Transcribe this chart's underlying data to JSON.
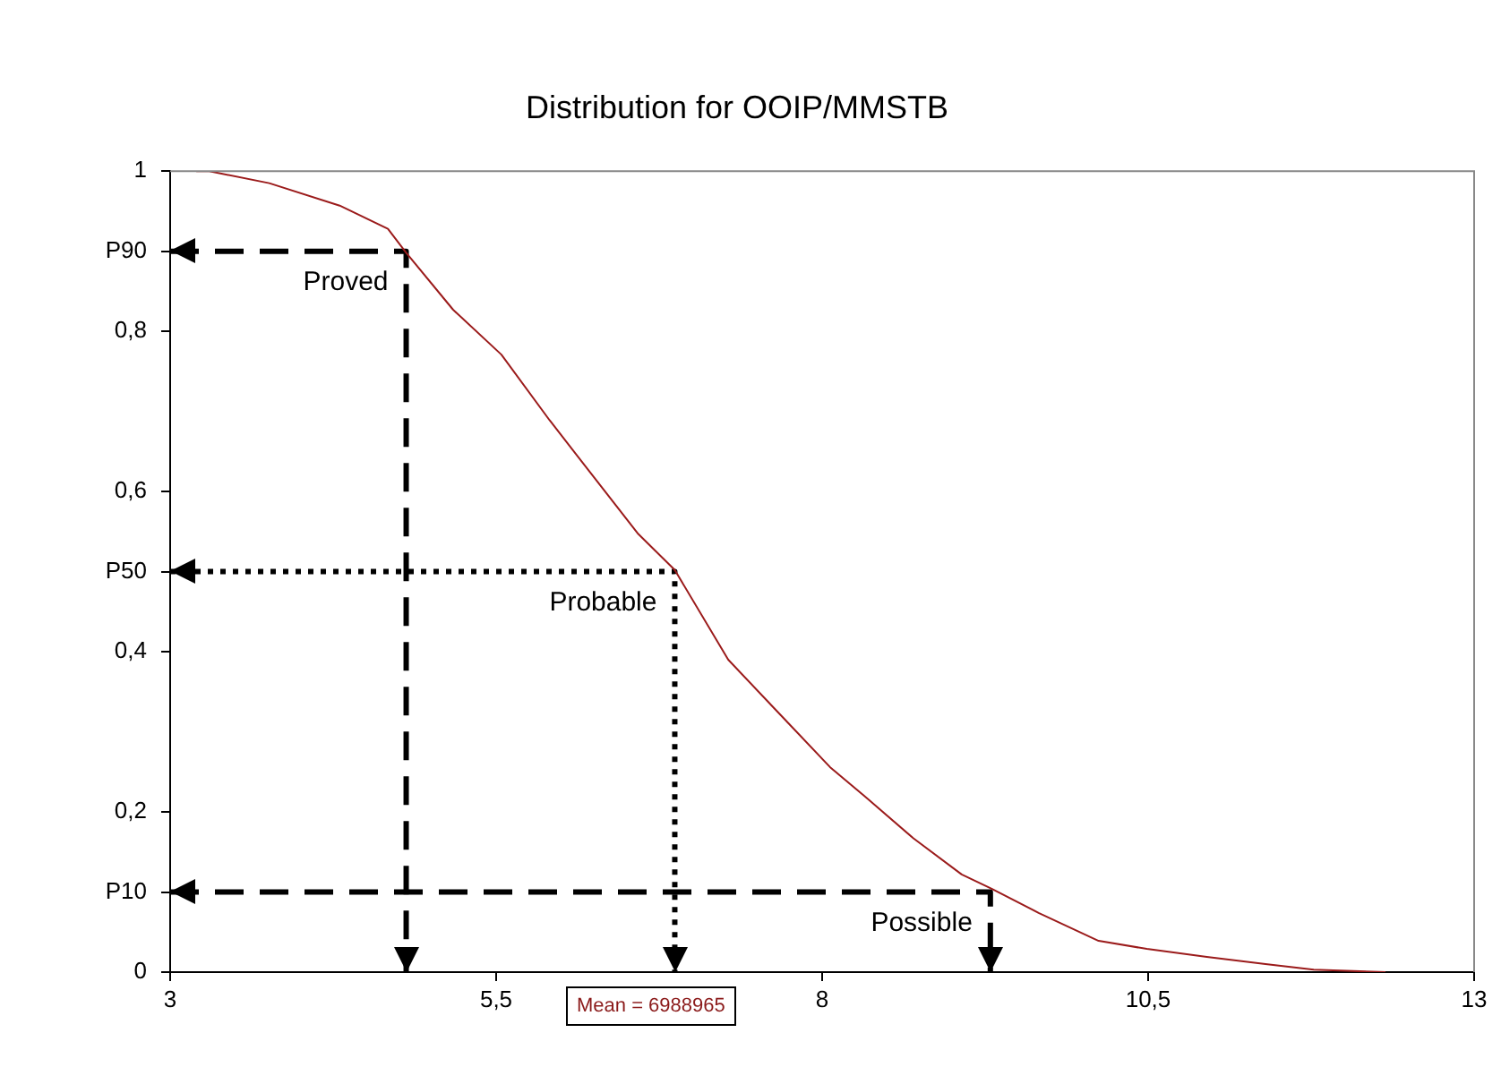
{
  "chart_data": {
    "type": "line",
    "title": "Distribution for OOIP/MMSTB",
    "xlim": [
      3,
      13
    ],
    "xticks": [
      3,
      {
        "value": 5.5,
        "label": "5,5"
      },
      8,
      {
        "value": 10.5,
        "label": "10,5"
      },
      13
    ],
    "ylim": [
      0,
      1
    ],
    "yticks": [
      0,
      {
        "value": 0.1,
        "label": "P10"
      },
      {
        "value": 0.2,
        "label": "0,2"
      },
      {
        "value": 0.4,
        "label": "0,4"
      },
      {
        "value": 0.5,
        "label": "P50"
      },
      {
        "value": 0.6,
        "label": "0,6"
      },
      {
        "value": 0.8,
        "label": "0,8"
      },
      {
        "value": 0.9,
        "label": "P90"
      },
      1
    ],
    "grid": false,
    "legend": false,
    "marker": "none",
    "annotations": [
      "Mean = 6988965"
    ],
    "series": [
      {
        "color": "#9b1b1b",
        "line_style": "solid",
        "x": [
          3.2,
          3.3,
          3.76,
          4.3,
          4.67,
          4.81,
          5.17,
          5.54,
          5.91,
          6.23,
          6.59,
          6.87,
          7.28,
          7.6,
          7.74,
          8.06,
          8.33,
          8.7,
          9.07,
          9.3,
          9.66,
          10.12,
          10.49,
          10.95,
          11.4,
          11.77,
          12.32
        ],
        "values": [
          1,
          1,
          0.985,
          0.957,
          0.928,
          0.898,
          0.827,
          0.771,
          0.689,
          0.622,
          0.547,
          0.502,
          0.39,
          0.335,
          0.311,
          0.256,
          0.219,
          0.167,
          0.122,
          0.104,
          0.074,
          0.039,
          0.029,
          0.019,
          0.01,
          0.003,
          0
        ]
      },
      {
        "name": "Proved",
        "color": "#000000",
        "line_style": "dashed",
        "x": [
          3,
          4.81,
          4.81
        ],
        "values": [
          0.9,
          0.9,
          0
        ]
      },
      {
        "name": "Probable",
        "color": "#000000",
        "line_style": "dotted",
        "x": [
          3,
          6.87,
          6.87
        ],
        "values": [
          0.5,
          0.5,
          0
        ]
      },
      {
        "name": "Possible",
        "color": "#000000",
        "line_style": "dashed",
        "x": [
          3,
          9.29,
          9.29
        ],
        "values": [
          0.1,
          0.1,
          0
        ]
      }
    ]
  }
}
